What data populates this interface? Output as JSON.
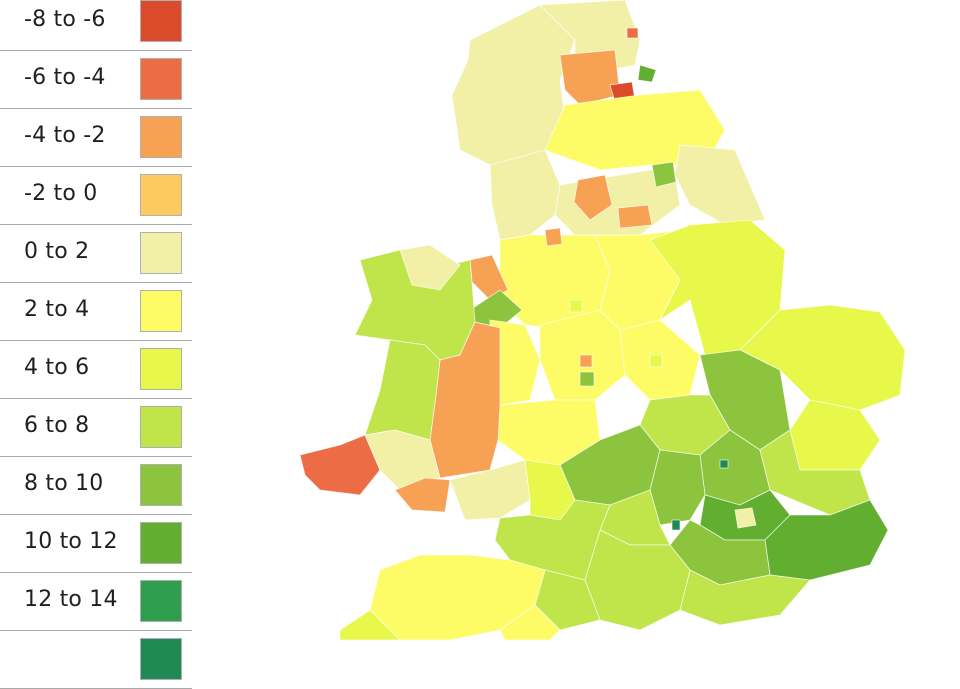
{
  "legend": {
    "items": [
      {
        "label": "-8 to -6",
        "color": "#d94b2b"
      },
      {
        "label": "-6 to -4",
        "color": "#ec6d45"
      },
      {
        "label": "-4 to -2",
        "color": "#f7a155"
      },
      {
        "label": "-2 to 0",
        "color": "#fcca5e"
      },
      {
        "label": "0 to 2",
        "color": "#f1f0a6"
      },
      {
        "label": "2 to 4",
        "color": "#fdfc66"
      },
      {
        "label": "4 to 6",
        "color": "#e7f84a"
      },
      {
        "label": "6 to 8",
        "color": "#bfe54a"
      },
      {
        "label": "8 to 10",
        "color": "#8cc43e"
      },
      {
        "label": "10 to 12",
        "color": "#62ae31"
      },
      {
        "label": "12 to 14",
        "color": "#2f9e4f"
      },
      {
        "label": "",
        "color": "#1f8a54"
      }
    ]
  },
  "map": {
    "region": "England and Wales",
    "coloring": "choropleth by legend band"
  }
}
